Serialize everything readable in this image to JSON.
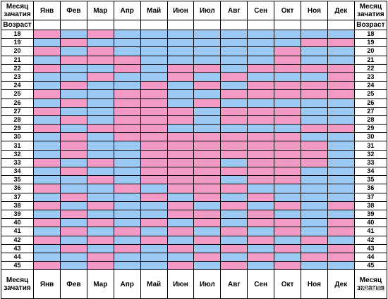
{
  "header": {
    "corner_label": "Месяц зачатия",
    "age_label": "Возраст",
    "months": [
      "Янв",
      "Фев",
      "Мар",
      "Апр",
      "Май",
      "Июн",
      "Июл",
      "Авг",
      "Сен",
      "Окт",
      "Ноя",
      "Дек"
    ]
  },
  "footer": {
    "corner_label": "Месяц зачатия",
    "months": [
      "Янв",
      "Фев",
      "Мар",
      "Апр",
      "Май",
      "Июн",
      "Июл",
      "Авг",
      "Сен",
      "Окт",
      "Ноя",
      "Дек"
    ]
  },
  "colors": {
    "G": "#f49ac6",
    "B": "#9cc8f4"
  },
  "legend": {
    "G": "pink",
    "B": "blue"
  },
  "rows": [
    {
      "age": "18",
      "cells": "GBGBBBBBBBBB"
    },
    {
      "age": "19",
      "cells": "BGBBBBBBBBGG"
    },
    {
      "age": "20",
      "cells": "GBGBBBBBBGBB"
    },
    {
      "age": "21",
      "cells": "BGGGBBBBBGBB"
    },
    {
      "age": "22",
      "cells": "GBBGBGGBGGGG"
    },
    {
      "age": "23",
      "cells": "BBGBBGBGBBBG"
    },
    {
      "age": "24",
      "cells": "BGBBGBGBGGGG"
    },
    {
      "age": "25",
      "cells": "GBBGGBBGGGGG"
    },
    {
      "age": "26",
      "cells": "BGBGGBGBBBBB"
    },
    {
      "age": "27",
      "cells": "GBBGGGBGGGBB"
    },
    {
      "age": "28",
      "cells": "BGBGGGBGGGBB"
    },
    {
      "age": "29",
      "cells": "GBGGGBBBBBGG"
    },
    {
      "age": "30",
      "cells": "BGBGGGGGGGBB"
    },
    {
      "age": "31",
      "cells": "BGBBGGGGGGGB"
    },
    {
      "age": "32",
      "cells": "BGBBGGGGGGGB"
    },
    {
      "age": "33",
      "cells": "GBGBGGGBGGGB"
    },
    {
      "age": "34",
      "cells": "BGBBGGGGGGBB"
    },
    {
      "age": "35",
      "cells": "BBGBGGGBGGBB"
    },
    {
      "age": "36",
      "cells": "GBBGBGGGBBBB"
    },
    {
      "age": "37",
      "cells": "BGBBGBGBGBBB"
    },
    {
      "age": "38",
      "cells": "GBGBBGBGBGBG"
    },
    {
      "age": "39",
      "cells": "BGBBBGGBGBBB"
    },
    {
      "age": "40",
      "cells": "GBGBGBGBGGBG"
    },
    {
      "age": "41",
      "cells": "BGBGBGBGBGBG"
    },
    {
      "age": "42",
      "cells": "GBGBGBGBGBGB"
    },
    {
      "age": "43",
      "cells": "BGBGBGBGBGBG"
    },
    {
      "age": "44",
      "cells": "BBGBBBGBGBGG"
    },
    {
      "age": "45",
      "cells": "GBGBBGBGBGBB"
    }
  ],
  "watermark": "izkis.su"
}
